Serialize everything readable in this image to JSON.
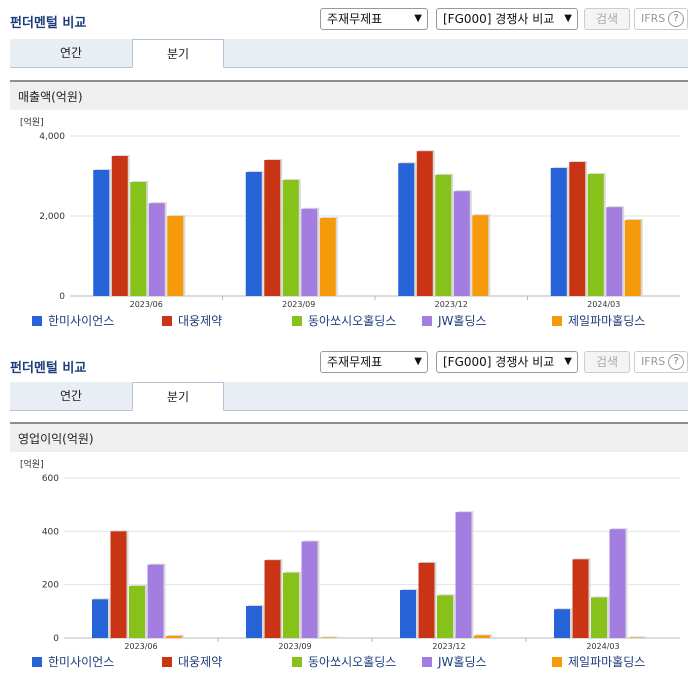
{
  "panels": [
    {
      "title": "펀더멘털 비교",
      "select1": "주재무제표",
      "select2": "[FG000] 경쟁사 비교",
      "search_label": "검색",
      "ifrs_label": "IFRS",
      "ifrs_help": "?",
      "tabs": [
        "연간",
        "분기"
      ],
      "section_title": "매출액(억원)",
      "chart_data": {
        "type": "bar",
        "unit_label": "[억원]",
        "categories": [
          "2023/06",
          "2023/09",
          "2023/12",
          "2024/03"
        ],
        "ylim": [
          0,
          4000
        ],
        "yticks": [
          "0",
          "2,000",
          "4,000"
        ],
        "ytick_values": [
          0,
          2000,
          4000
        ],
        "grid": true,
        "legend_position": "bottom",
        "series": [
          {
            "name": "한미사이언스",
            "color": "#2563d6",
            "values": [
              3150,
              3100,
              3320,
              3200
            ]
          },
          {
            "name": "대웅제약",
            "color": "#c83414",
            "values": [
              3500,
              3400,
              3620,
              3350
            ]
          },
          {
            "name": "동아쏘시오홀딩스",
            "color": "#86c21a",
            "values": [
              2850,
              2900,
              3030,
              3050
            ]
          },
          {
            "name": "JW홀딩스",
            "color": "#a47de0",
            "values": [
              2320,
              2180,
              2620,
              2220
            ]
          },
          {
            "name": "제일파마홀딩스",
            "color": "#f59a0a",
            "values": [
              2000,
              1950,
              2020,
              1900
            ]
          }
        ]
      }
    },
    {
      "title": "펀더멘털 비교",
      "select1": "주재무제표",
      "select2": "[FG000] 경쟁사 비교",
      "search_label": "검색",
      "ifrs_label": "IFRS",
      "ifrs_help": "?",
      "tabs": [
        "연간",
        "분기"
      ],
      "section_title": "영업이익(억원)",
      "chart_data": {
        "type": "bar",
        "unit_label": "[억원]",
        "categories": [
          "2023/06",
          "2023/09",
          "2023/12",
          "2024/03"
        ],
        "ylim": [
          0,
          600
        ],
        "yticks": [
          "0",
          "200",
          "400",
          "600"
        ],
        "ytick_values": [
          0,
          200,
          400,
          600
        ],
        "grid": true,
        "legend_position": "bottom",
        "series": [
          {
            "name": "한미사이언스",
            "color": "#2563d6",
            "values": [
              145,
              120,
              180,
              108
            ]
          },
          {
            "name": "대웅제약",
            "color": "#c83414",
            "values": [
              400,
              292,
              282,
              295
            ]
          },
          {
            "name": "동아쏘시오홀딩스",
            "color": "#86c21a",
            "values": [
              195,
              245,
              160,
              152
            ]
          },
          {
            "name": "JW홀딩스",
            "color": "#a47de0",
            "values": [
              275,
              362,
              472,
              408
            ]
          },
          {
            "name": "제일파마홀딩스",
            "color": "#f59a0a",
            "values": [
              8,
              2,
              10,
              2
            ]
          }
        ]
      }
    }
  ]
}
